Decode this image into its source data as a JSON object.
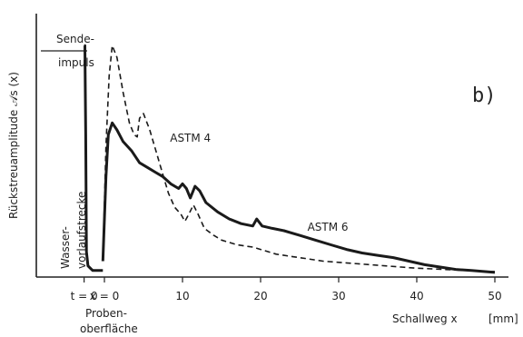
{
  "chart_data": {
    "type": "line",
    "panel_label": "b)",
    "ylabel": "Rückstreuamplitude 𝒜s (x)",
    "xlabel": "Schallweg x",
    "xunit": "[mm]",
    "xlim": [
      -3,
      50
    ],
    "ylim": [
      0,
      1
    ],
    "x_ticks": [
      {
        "x": -2.6,
        "label": "t = 0"
      },
      {
        "x": 0,
        "label": "x = 0"
      },
      {
        "x": 10,
        "label": "10"
      },
      {
        "x": 20,
        "label": "20"
      },
      {
        "x": 30,
        "label": "30"
      },
      {
        "x": 40,
        "label": "40"
      },
      {
        "x": 50,
        "label": "50"
      }
    ],
    "annotations": {
      "transmit_pulse": [
        "Sende-",
        "impuls"
      ],
      "water_path": [
        "Wasser-",
        "vorlaufstrecke"
      ],
      "sample_surface": [
        "Proben-",
        "oberfläche"
      ]
    },
    "transmit_pulse_line": {
      "x": [
        -2.6,
        -2.5,
        -2.4,
        -2.3,
        -2.1,
        -1.8,
        -1.5,
        -1.0,
        -0.5,
        -0.2
      ],
      "y": [
        0.98,
        0.98,
        0.6,
        0.1,
        0.04,
        0.03,
        0.02,
        0.02,
        0.02,
        0.02
      ]
    },
    "series": [
      {
        "name": "ASTM 4",
        "style": "dashed",
        "x": [
          -0.2,
          0.2,
          0.6,
          1.0,
          1.6,
          2.4,
          3.2,
          3.8,
          4.2,
          4.5,
          5.0,
          5.8,
          6.6,
          7.4,
          8.2,
          9.0,
          9.8,
          10.3,
          10.8,
          11.4,
          12.0,
          12.8,
          14.0,
          15.0,
          16.0,
          17.0,
          18.0,
          19.0,
          20.0,
          22.0,
          24.0,
          26.0,
          28.0,
          30.0,
          32.0,
          34.0,
          36.0,
          38.0,
          40.0,
          42.0,
          44.0,
          46.0,
          48.0,
          50.0
        ],
        "y": [
          0.06,
          0.55,
          0.85,
          0.98,
          0.93,
          0.78,
          0.65,
          0.6,
          0.59,
          0.67,
          0.69,
          0.62,
          0.53,
          0.44,
          0.35,
          0.29,
          0.26,
          0.23,
          0.26,
          0.3,
          0.26,
          0.2,
          0.17,
          0.15,
          0.14,
          0.13,
          0.125,
          0.12,
          0.11,
          0.09,
          0.08,
          0.07,
          0.06,
          0.055,
          0.05,
          0.045,
          0.04,
          0.035,
          0.03,
          0.027,
          0.024,
          0.021,
          0.018,
          0.015
        ]
      },
      {
        "name": "ASTM 6",
        "style": "solid",
        "x": [
          -0.2,
          0.2,
          0.5,
          1.0,
          1.6,
          2.4,
          3.5,
          4.5,
          5.5,
          6.5,
          7.5,
          8.5,
          9.5,
          10.0,
          10.5,
          11.0,
          11.6,
          12.2,
          13.0,
          14.5,
          16.0,
          17.5,
          19.0,
          19.5,
          20.2,
          21.5,
          23.0,
          25.0,
          27.0,
          29.0,
          31.0,
          33.0,
          35.0,
          37.0,
          39.0,
          41.0,
          43.0,
          45.0,
          47.0,
          50.0
        ],
        "y": [
          0.06,
          0.42,
          0.6,
          0.65,
          0.62,
          0.57,
          0.53,
          0.48,
          0.46,
          0.44,
          0.42,
          0.39,
          0.37,
          0.39,
          0.37,
          0.33,
          0.38,
          0.36,
          0.31,
          0.27,
          0.24,
          0.22,
          0.21,
          0.24,
          0.21,
          0.2,
          0.19,
          0.17,
          0.15,
          0.13,
          0.11,
          0.095,
          0.085,
          0.075,
          0.06,
          0.045,
          0.035,
          0.025,
          0.02,
          0.012
        ]
      }
    ]
  }
}
